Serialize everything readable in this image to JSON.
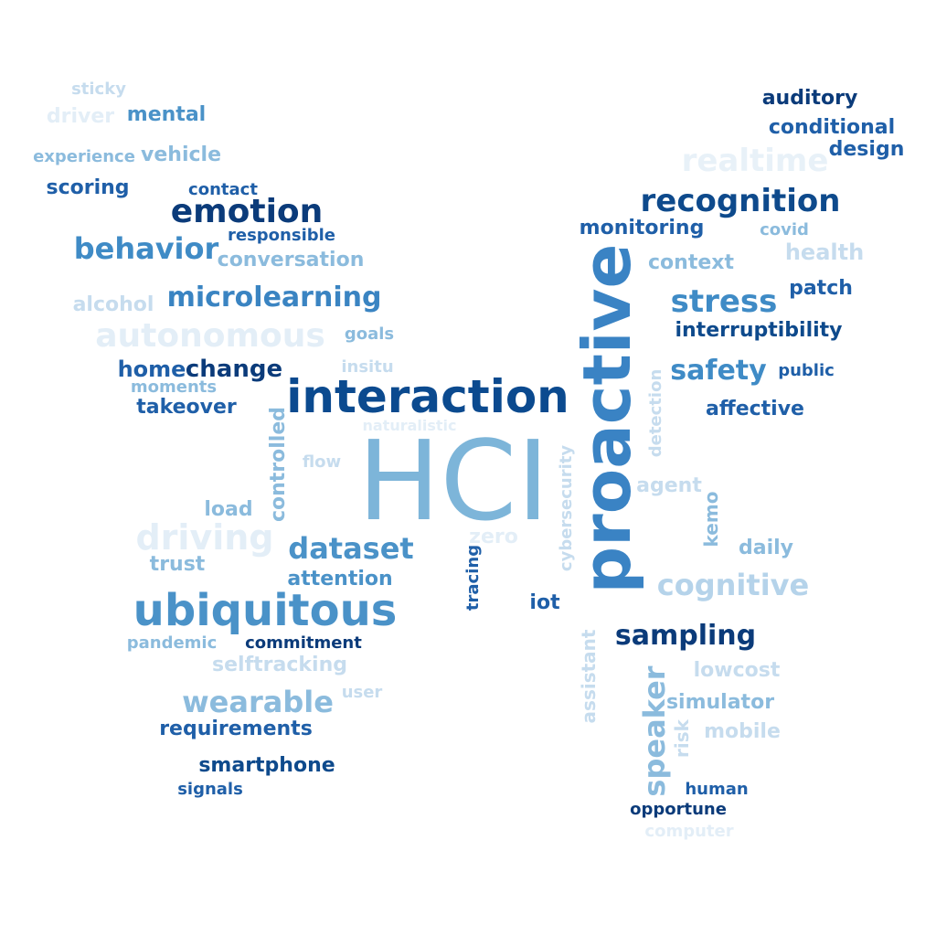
{
  "palette": {
    "navy": "#0b3b7a",
    "blue": "#1f5fa8",
    "mid": "#4a90c8",
    "light": "#8bbbdd",
    "pale": "#c6dcee",
    "faint": "#e3eef7"
  },
  "words": [
    {
      "text": "HCI",
      "color": "#7db5d9"
    },
    {
      "text": "proactive",
      "color": "#3a83c4"
    },
    {
      "text": "interaction",
      "color": "#0b4a8f"
    },
    {
      "text": "ubiquitous",
      "color": "#4a92c8"
    },
    {
      "text": "recognition",
      "color": "#0e4a8c"
    },
    {
      "text": "emotion",
      "color": "#0b3b7a"
    },
    {
      "text": "behavior",
      "color": "#3f8bc6"
    },
    {
      "text": "microlearning",
      "color": "#3a84c2"
    },
    {
      "text": "autonomous",
      "color": "#e3eef7"
    },
    {
      "text": "stress",
      "color": "#3f8bc6"
    },
    {
      "text": "safety",
      "color": "#3f8bc6"
    },
    {
      "text": "dataset",
      "color": "#4a92c8"
    },
    {
      "text": "sampling",
      "color": "#0b3b7a"
    },
    {
      "text": "cognitive",
      "color": "#b5d3ea"
    },
    {
      "text": "wearable",
      "color": "#8bbbdd"
    },
    {
      "text": "driving",
      "color": "#e3eef7"
    },
    {
      "text": "realtime",
      "color": "#e8f1f8"
    },
    {
      "text": "speaker",
      "color": "#8bbbdd"
    },
    {
      "text": "auditory",
      "color": "#0b3b7a"
    },
    {
      "text": "conditional",
      "color": "#1f5fa8"
    },
    {
      "text": "design",
      "color": "#1f5fa8"
    },
    {
      "text": "sticky",
      "color": "#c6dcee"
    },
    {
      "text": "driver",
      "color": "#e3eef7"
    },
    {
      "text": "mental",
      "color": "#4a92c8"
    },
    {
      "text": "experience",
      "color": "#8bbbdd"
    },
    {
      "text": "vehicle",
      "color": "#8bbbdd"
    },
    {
      "text": "scoring",
      "color": "#1f5fa8"
    },
    {
      "text": "contact",
      "color": "#1f5fa8"
    },
    {
      "text": "responsible",
      "color": "#1f5fa8"
    },
    {
      "text": "conversation",
      "color": "#8bbbdd"
    },
    {
      "text": "alcohol",
      "color": "#c6dcee"
    },
    {
      "text": "goals",
      "color": "#8bbbdd"
    },
    {
      "text": "home",
      "color": "#1f5fa8"
    },
    {
      "text": "change",
      "color": "#0b3b7a"
    },
    {
      "text": "moments",
      "color": "#8bbbdd"
    },
    {
      "text": "insitu",
      "color": "#c6dcee"
    },
    {
      "text": "takeover",
      "color": "#1f5fa8"
    },
    {
      "text": "monitoring",
      "color": "#1f5fa8"
    },
    {
      "text": "covid",
      "color": "#8bbbdd"
    },
    {
      "text": "health",
      "color": "#c6dcee"
    },
    {
      "text": "context",
      "color": "#8bbbdd"
    },
    {
      "text": "patch",
      "color": "#1f5fa8"
    },
    {
      "text": "interruptibility",
      "color": "#0e4a8c"
    },
    {
      "text": "public",
      "color": "#1f5fa8"
    },
    {
      "text": "affective",
      "color": "#1f5fa8"
    },
    {
      "text": "detection",
      "color": "#c6dcee"
    },
    {
      "text": "naturalistic",
      "color": "#e3eef7"
    },
    {
      "text": "controlled",
      "color": "#8bbbdd"
    },
    {
      "text": "flow",
      "color": "#c6dcee"
    },
    {
      "text": "cybersecurity",
      "color": "#c6dcee"
    },
    {
      "text": "agent",
      "color": "#c6dcee"
    },
    {
      "text": "kemo",
      "color": "#8bbbdd"
    },
    {
      "text": "load",
      "color": "#8bbbdd"
    },
    {
      "text": "zero",
      "color": "#e3eef7"
    },
    {
      "text": "trust",
      "color": "#8bbbdd"
    },
    {
      "text": "tracing",
      "color": "#1f5fa8"
    },
    {
      "text": "daily",
      "color": "#8bbbdd"
    },
    {
      "text": "attention",
      "color": "#4a92c8"
    },
    {
      "text": "iot",
      "color": "#1f5fa8"
    },
    {
      "text": "pandemic",
      "color": "#8bbbdd"
    },
    {
      "text": "commitment",
      "color": "#0b3b7a"
    },
    {
      "text": "selftracking",
      "color": "#c6dcee"
    },
    {
      "text": "assistant",
      "color": "#c6dcee"
    },
    {
      "text": "lowcost",
      "color": "#c6dcee"
    },
    {
      "text": "user",
      "color": "#c6dcee"
    },
    {
      "text": "simulator",
      "color": "#8bbbdd"
    },
    {
      "text": "requirements",
      "color": "#1f5fa8"
    },
    {
      "text": "risk",
      "color": "#c6dcee"
    },
    {
      "text": "mobile",
      "color": "#c6dcee"
    },
    {
      "text": "smartphone",
      "color": "#0e4a8c"
    },
    {
      "text": "signals",
      "color": "#1f5fa8"
    },
    {
      "text": "human",
      "color": "#1f5fa8"
    },
    {
      "text": "opportune",
      "color": "#0b3b7a"
    },
    {
      "text": "computer",
      "color": "#e3eef7"
    }
  ]
}
